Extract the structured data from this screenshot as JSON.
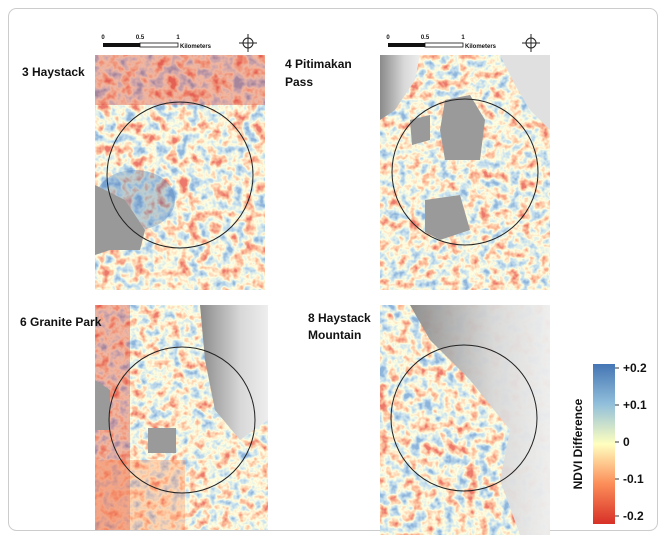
{
  "panels": [
    {
      "label": [
        "3 Haystack"
      ],
      "scale_bar": {
        "ticks": [
          0,
          0.5,
          1
        ],
        "unit": "Kilometers"
      }
    },
    {
      "label": [
        "4 Pitimakan",
        "Pass"
      ],
      "scale_bar": {
        "ticks": [
          0,
          0.5,
          1
        ],
        "unit": "Kilometers"
      }
    },
    {
      "label": [
        "6 Granite Park"
      ]
    },
    {
      "label": [
        "8 Haystack",
        "Mountain"
      ]
    }
  ],
  "legend": {
    "title": "NDVI Difference",
    "range": [
      -0.2,
      0.2
    ],
    "ticks": [
      {
        "value": 0.2,
        "label": "+0.2"
      },
      {
        "value": 0.1,
        "label": "+0.1"
      },
      0,
      -0.1,
      -0.2
    ]
  }
}
